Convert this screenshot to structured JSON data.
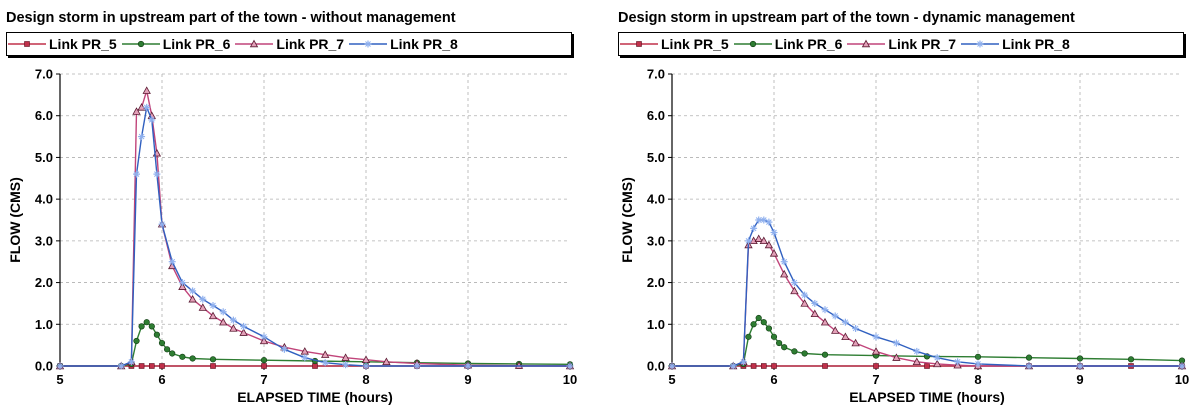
{
  "chart_data": [
    {
      "type": "line",
      "title": "Design storm in upstream part of the town - without management",
      "xlabel": "ELAPSED TIME (hours)",
      "ylabel": "FLOW (CMS)",
      "xlim": [
        5,
        10
      ],
      "ylim": [
        0,
        7
      ],
      "xticks": [
        "5",
        "6",
        "7",
        "8",
        "9",
        "10"
      ],
      "yticks": [
        "0.0",
        "1.0",
        "2.0",
        "3.0",
        "4.0",
        "5.0",
        "6.0",
        "7.0"
      ],
      "grid": true,
      "legend": "top",
      "series": [
        {
          "name": "Link PR_5",
          "color": "#c0304a",
          "marker": "square",
          "x": [
            5,
            5.7,
            5.8,
            5.9,
            6.0,
            6.5,
            7,
            7.5,
            8,
            8.5,
            9,
            9.5,
            10
          ],
          "y": [
            0,
            0,
            0,
            0,
            0,
            0,
            0,
            0,
            0,
            0,
            0,
            0,
            0
          ]
        },
        {
          "name": "Link PR_6",
          "color": "#2e7d32",
          "marker": "circle",
          "x": [
            5,
            5.6,
            5.7,
            5.75,
            5.8,
            5.85,
            5.9,
            5.95,
            6.0,
            6.05,
            6.1,
            6.2,
            6.3,
            6.5,
            7,
            7.5,
            8,
            8.5,
            9,
            9.5,
            10
          ],
          "y": [
            0,
            0,
            0.05,
            0.6,
            0.95,
            1.05,
            0.95,
            0.75,
            0.55,
            0.4,
            0.3,
            0.22,
            0.18,
            0.16,
            0.14,
            0.12,
            0.1,
            0.08,
            0.06,
            0.05,
            0.04
          ]
        },
        {
          "name": "Link PR_7",
          "color": "#c1447a",
          "marker": "triangle",
          "x": [
            5,
            5.6,
            5.7,
            5.75,
            5.8,
            5.85,
            5.9,
            5.95,
            6.0,
            6.1,
            6.2,
            6.3,
            6.4,
            6.5,
            6.6,
            6.7,
            6.8,
            7,
            7.2,
            7.4,
            7.6,
            7.8,
            8.0,
            8.2,
            8.5,
            9,
            9.5,
            10
          ],
          "y": [
            0,
            0,
            0.1,
            6.1,
            6.2,
            6.6,
            6.0,
            5.1,
            3.4,
            2.4,
            1.9,
            1.6,
            1.4,
            1.2,
            1.05,
            0.9,
            0.8,
            0.6,
            0.45,
            0.35,
            0.27,
            0.2,
            0.15,
            0.1,
            0.06,
            0.02,
            0.01,
            0
          ]
        },
        {
          "name": "Link PR_8",
          "color": "#3060c0",
          "marker": "star",
          "x": [
            5,
            5.6,
            5.7,
            5.75,
            5.8,
            5.85,
            5.9,
            5.95,
            6.0,
            6.1,
            6.2,
            6.3,
            6.4,
            6.5,
            6.6,
            6.7,
            6.8,
            7,
            7.2,
            7.4,
            7.6,
            7.8,
            8.0,
            8.5,
            9,
            10
          ],
          "y": [
            0,
            0,
            0.1,
            4.6,
            5.5,
            6.2,
            5.9,
            4.6,
            3.4,
            2.5,
            2.0,
            1.8,
            1.6,
            1.45,
            1.3,
            1.1,
            0.95,
            0.7,
            0.4,
            0.2,
            0.08,
            0.03,
            0,
            0,
            0,
            0
          ]
        }
      ]
    },
    {
      "type": "line",
      "title": "Design storm in upstream part of the town - dynamic management",
      "xlabel": "ELAPSED TIME (hours)",
      "ylabel": "FLOW (CMS)",
      "xlim": [
        5,
        10
      ],
      "ylim": [
        0,
        7
      ],
      "xticks": [
        "5",
        "6",
        "7",
        "8",
        "9",
        "10"
      ],
      "yticks": [
        "0.0",
        "1.0",
        "2.0",
        "3.0",
        "4.0",
        "5.0",
        "6.0",
        "7.0"
      ],
      "grid": true,
      "legend": "top",
      "series": [
        {
          "name": "Link PR_5",
          "color": "#c0304a",
          "marker": "square",
          "x": [
            5,
            5.7,
            5.8,
            5.9,
            6.0,
            6.5,
            7,
            7.5,
            8,
            8.5,
            9,
            9.5,
            10
          ],
          "y": [
            0,
            0,
            0,
            0,
            0,
            0,
            0,
            0,
            0,
            0,
            0,
            0,
            0
          ]
        },
        {
          "name": "Link PR_6",
          "color": "#2e7d32",
          "marker": "circle",
          "x": [
            5,
            5.6,
            5.7,
            5.75,
            5.8,
            5.85,
            5.9,
            5.95,
            6.0,
            6.05,
            6.1,
            6.2,
            6.3,
            6.5,
            7,
            7.5,
            8,
            8.5,
            9,
            9.5,
            10
          ],
          "y": [
            0,
            0,
            0.05,
            0.7,
            1.0,
            1.15,
            1.05,
            0.9,
            0.7,
            0.55,
            0.45,
            0.35,
            0.3,
            0.27,
            0.25,
            0.23,
            0.22,
            0.2,
            0.18,
            0.16,
            0.13
          ]
        },
        {
          "name": "Link PR_7",
          "color": "#c1447a",
          "marker": "triangle",
          "x": [
            5,
            5.6,
            5.7,
            5.75,
            5.8,
            5.85,
            5.9,
            5.95,
            6.0,
            6.1,
            6.2,
            6.3,
            6.4,
            6.5,
            6.6,
            6.7,
            6.8,
            7,
            7.2,
            7.4,
            7.6,
            7.8,
            8.0,
            8.5,
            9,
            10
          ],
          "y": [
            0,
            0,
            0.1,
            2.9,
            3.0,
            3.05,
            3.0,
            2.9,
            2.7,
            2.2,
            1.8,
            1.5,
            1.25,
            1.05,
            0.85,
            0.7,
            0.55,
            0.35,
            0.2,
            0.1,
            0.05,
            0.02,
            0,
            0,
            0,
            0
          ]
        },
        {
          "name": "Link PR_8",
          "color": "#3060c0",
          "marker": "star",
          "x": [
            5,
            5.6,
            5.7,
            5.75,
            5.8,
            5.85,
            5.9,
            5.95,
            6.0,
            6.1,
            6.2,
            6.3,
            6.4,
            6.5,
            6.6,
            6.7,
            6.8,
            7,
            7.2,
            7.4,
            7.6,
            7.8,
            8.0,
            8.5,
            9,
            10
          ],
          "y": [
            0,
            0,
            0.1,
            3.0,
            3.3,
            3.5,
            3.5,
            3.45,
            3.2,
            2.5,
            2.0,
            1.7,
            1.5,
            1.35,
            1.2,
            1.05,
            0.9,
            0.7,
            0.55,
            0.35,
            0.2,
            0.1,
            0.05,
            0,
            0,
            0
          ]
        }
      ]
    }
  ]
}
